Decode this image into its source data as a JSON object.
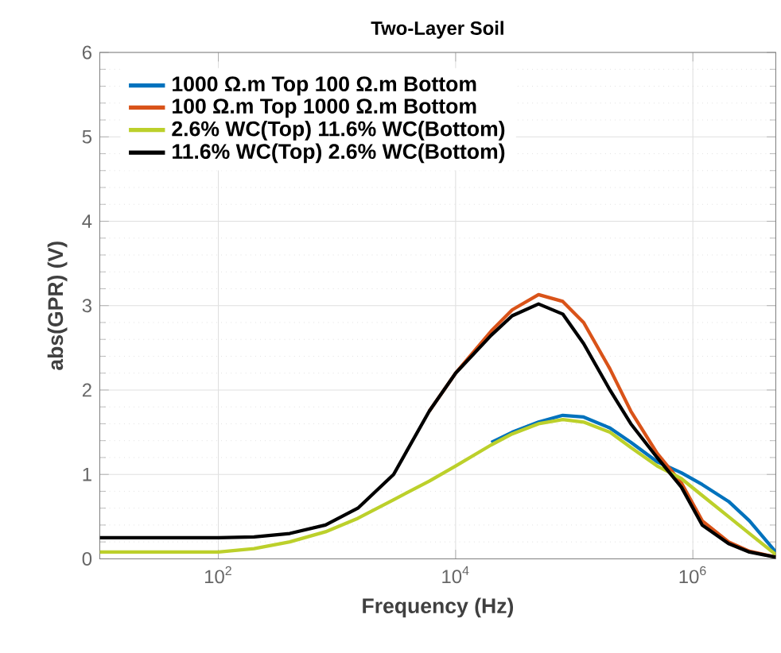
{
  "chart_data": {
    "type": "line",
    "title": "Two-Layer Soil",
    "xlabel": "Frequency (Hz)",
    "ylabel": "abs(GPR) (V)",
    "log": "x",
    "x": [
      10,
      100,
      200,
      400,
      800,
      1500,
      3000,
      6000,
      10000,
      20000,
      30000,
      50000,
      80000,
      120000,
      200000,
      300000,
      500000,
      800000,
      1200000,
      2000000,
      3000000,
      5000000
    ],
    "series": [
      {
        "name": "1000 Ω.m Top 100 Ω.m Bottom",
        "color": "#0072bd",
        "values": [
          null,
          null,
          null,
          null,
          null,
          null,
          null,
          null,
          null,
          1.38,
          1.5,
          1.62,
          1.7,
          1.68,
          1.55,
          1.38,
          1.15,
          1.02,
          0.88,
          0.68,
          0.45,
          0.08
        ]
      },
      {
        "name": "100 Ω.m Top 1000 Ω.m Bottom",
        "color": "#d95319",
        "values": [
          null,
          null,
          null,
          null,
          null,
          null,
          null,
          1.75,
          2.2,
          2.7,
          2.95,
          3.13,
          3.05,
          2.8,
          2.25,
          1.75,
          1.25,
          0.9,
          0.45,
          0.2,
          0.09,
          0.02
        ]
      },
      {
        "name": "2.6% WC(Top) 11.6% WC(Bottom)",
        "color": "#bcd02b",
        "values": [
          0.08,
          0.08,
          0.12,
          0.2,
          0.32,
          0.48,
          0.7,
          0.92,
          1.1,
          1.35,
          1.48,
          1.6,
          1.65,
          1.62,
          1.5,
          1.32,
          1.1,
          0.95,
          0.75,
          0.5,
          0.3,
          0.05
        ]
      },
      {
        "name": "11.6% WC(Top) 2.6% WC(Bottom)",
        "color": "#000000",
        "values": [
          0.25,
          0.25,
          0.26,
          0.3,
          0.4,
          0.6,
          1.0,
          1.75,
          2.2,
          2.65,
          2.88,
          3.02,
          2.9,
          2.55,
          2.0,
          1.6,
          1.2,
          0.85,
          0.4,
          0.18,
          0.08,
          0.02
        ]
      }
    ],
    "xlim": [
      10,
      5000000
    ],
    "xticks": [
      {
        "value": 100,
        "label": "10$^{2}$"
      },
      {
        "value": 10000,
        "label": "10$^{4}$"
      },
      {
        "value": 1000000,
        "label": "10$^{6}$"
      }
    ],
    "ylim": [
      0,
      6
    ],
    "yticks": [
      0,
      1,
      2,
      3,
      4,
      5,
      6
    ],
    "grid": true,
    "legend": "top left",
    "line_style": "solid",
    "marker": "none"
  }
}
